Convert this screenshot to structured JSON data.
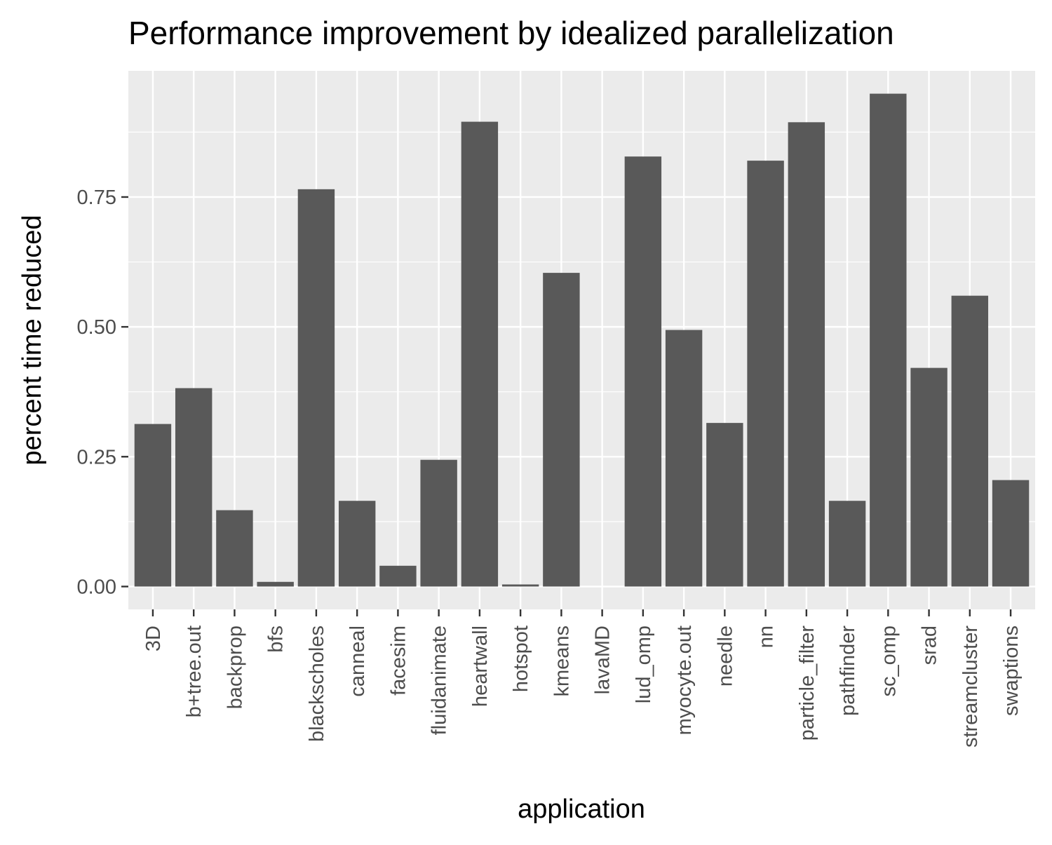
{
  "chart_data": {
    "type": "bar",
    "title": "Performance improvement by idealized parallelization",
    "xlabel": "application",
    "ylabel": "percent time reduced",
    "categories": [
      "3D",
      "b+tree.out",
      "backprop",
      "bfs",
      "blackscholes",
      "canneal",
      "facesim",
      "fluidanimate",
      "heartwall",
      "hotspot",
      "kmeans",
      "lavaMD",
      "lud_omp",
      "myocyte.out",
      "needle",
      "nn",
      "particle_filter",
      "pathfinder",
      "sc_omp",
      "srad",
      "streamcluster",
      "swaptions"
    ],
    "values": [
      0.313,
      0.382,
      0.147,
      0.009,
      0.765,
      0.165,
      0.04,
      0.244,
      0.895,
      0.004,
      0.604,
      0.0,
      0.828,
      0.494,
      0.315,
      0.82,
      0.894,
      0.165,
      0.949,
      0.421,
      0.56,
      0.205
    ],
    "yticks": [
      "0.00",
      "0.25",
      "0.50",
      "0.75"
    ],
    "ytick_values": [
      0,
      0.25,
      0.5,
      0.75
    ],
    "ylim": [
      -0.044,
      0.993
    ],
    "grid": true,
    "legend": "none",
    "colors": {
      "bar": "#595959",
      "panel": "#ebebeb",
      "grid": "#ffffff",
      "tick_text": "#4d4d4d",
      "text": "#000000"
    }
  }
}
